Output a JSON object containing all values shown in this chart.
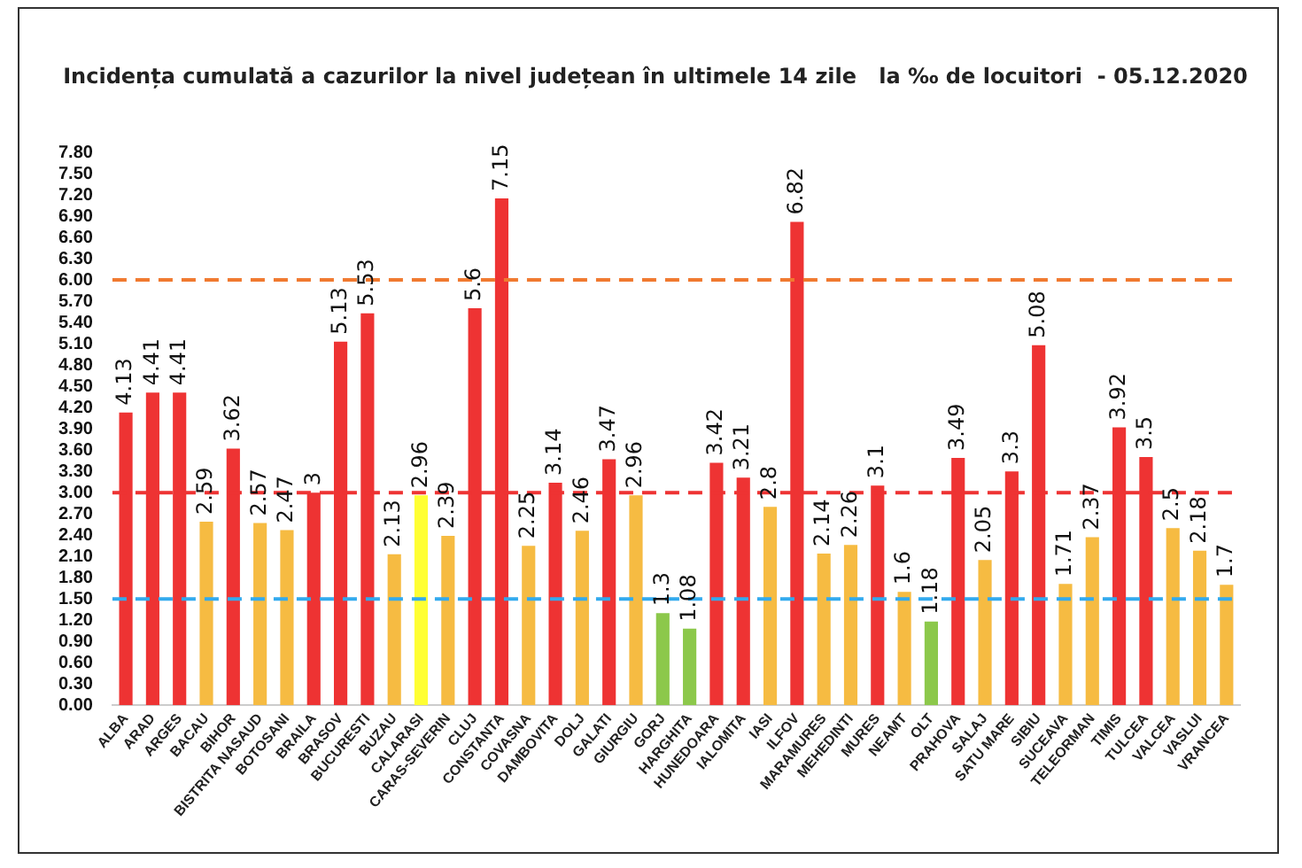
{
  "chart_data": {
    "type": "bar",
    "title": "Incidența cumulată a cazurilor la nivel județean în ultimele 14 zile   la ‰ de locuitori  - 05.12.2020",
    "categories": [
      "ALBA",
      "ARAD",
      "ARGES",
      "BACAU",
      "BIHOR",
      "BISTRITA NASAUD",
      "BOTOSANI",
      "BRAILA",
      "BRASOV",
      "BUCURESTI",
      "BUZAU",
      "CALARASI",
      "CARAS-SEVERIN",
      "CLUJ",
      "CONSTANTA",
      "COVASNA",
      "DAMBOVITA",
      "DOLJ",
      "GALATI",
      "GIURGIU",
      "GORJ",
      "HARGHITA",
      "HUNEDOARA",
      "IALOMITA",
      "IASI",
      "ILFOV",
      "MARAMURES",
      "MEHEDINTI",
      "MURES",
      "NEAMT",
      "OLT",
      "PRAHOVA",
      "SALAJ",
      "SATU MARE",
      "SIBIU",
      "SUCEAVA",
      "TELEORMAN",
      "TIMIS",
      "TULCEA",
      "VALCEA",
      "VASLUI",
      "VRANCEA"
    ],
    "values": [
      4.13,
      4.41,
      4.41,
      2.59,
      3.62,
      2.57,
      2.47,
      3,
      5.13,
      5.53,
      2.13,
      2.96,
      2.39,
      5.6,
      7.15,
      2.25,
      3.14,
      2.46,
      3.47,
      2.96,
      1.3,
      1.08,
      3.42,
      3.21,
      2.8,
      6.82,
      2.14,
      2.26,
      3.1,
      1.6,
      1.18,
      3.49,
      2.05,
      3.3,
      5.08,
      1.71,
      2.37,
      3.92,
      3.5,
      2.5,
      2.18,
      1.7
    ],
    "colors": [
      "#ee3333",
      "#ee3333",
      "#ee3333",
      "#f6bb42",
      "#ee3333",
      "#f6bb42",
      "#f6bb42",
      "#ee3333",
      "#ee3333",
      "#ee3333",
      "#f6bb42",
      "#ffff33",
      "#f6bb42",
      "#ee3333",
      "#ee3333",
      "#f6bb42",
      "#ee3333",
      "#f6bb42",
      "#ee3333",
      "#f6bb42",
      "#8cc84b",
      "#8cc84b",
      "#ee3333",
      "#ee3333",
      "#f6bb42",
      "#ee3333",
      "#f6bb42",
      "#f6bb42",
      "#ee3333",
      "#f6bb42",
      "#8cc84b",
      "#ee3333",
      "#f6bb42",
      "#ee3333",
      "#ee3333",
      "#f6bb42",
      "#f6bb42",
      "#ee3333",
      "#ee3333",
      "#f6bb42",
      "#f6bb42",
      "#f6bb42"
    ],
    "ylim": [
      0,
      7.8
    ],
    "yticks": [
      {
        "value": 0,
        "label": "0.00"
      },
      {
        "value": 0.3,
        "label": "0.30"
      },
      {
        "value": 0.6,
        "label": "0.60"
      },
      {
        "value": 0.9,
        "label": "0.90"
      },
      {
        "value": 1.2,
        "label": "1.20"
      },
      {
        "value": 1.5,
        "label": "1.50"
      },
      {
        "value": 1.8,
        "label": "1.80"
      },
      {
        "value": 2.1,
        "label": "2.10"
      },
      {
        "value": 2.4,
        "label": "2.40"
      },
      {
        "value": 2.7,
        "label": "2.70"
      },
      {
        "value": 3,
        "label": "3.00"
      },
      {
        "value": 3.3,
        "label": "3.30"
      },
      {
        "value": 3.6,
        "label": "3.60"
      },
      {
        "value": 3.9,
        "label": "3.90"
      },
      {
        "value": 4.2,
        "label": "4.20"
      },
      {
        "value": 4.5,
        "label": "4.50"
      },
      {
        "value": 4.8,
        "label": "4.80"
      },
      {
        "value": 5.1,
        "label": "5.10"
      },
      {
        "value": 5.4,
        "label": "5.40"
      },
      {
        "value": 5.7,
        "label": "5.70"
      },
      {
        "value": 6,
        "label": "6.00"
      },
      {
        "value": 6.3,
        "label": "6.30"
      },
      {
        "value": 6.6,
        "label": "6.60"
      },
      {
        "value": 6.9,
        "label": "6.90"
      },
      {
        "value": 7.2,
        "label": "7.20"
      },
      {
        "value": 7.5,
        "label": "7.50"
      },
      {
        "value": 7.8,
        "label": "7.80"
      }
    ],
    "ref_lines": [
      {
        "axis": "y",
        "value": 6,
        "color": "#f07a30",
        "line_style": "dashed"
      },
      {
        "axis": "y",
        "value": 3,
        "color": "#ee3333",
        "line_style": "dashed"
      },
      {
        "axis": "y",
        "value": 1.5,
        "color": "#33aaee",
        "line_style": "dashed"
      }
    ],
    "data_labels": true,
    "grid": false,
    "legend": false
  }
}
